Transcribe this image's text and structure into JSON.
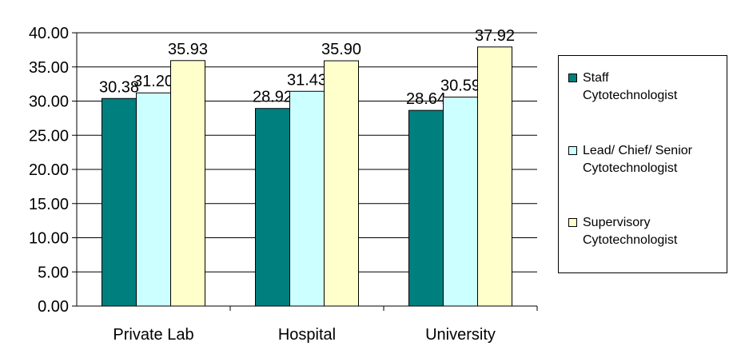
{
  "chart_data": {
    "type": "bar",
    "categories": [
      "Private Lab",
      "Hospital",
      "University"
    ],
    "series": [
      {
        "name": "Staff\nCytotechnologist",
        "values": [
          30.38,
          28.92,
          28.64
        ],
        "color": "#007F7F"
      },
      {
        "name": "Lead/ Chief/ Senior\nCytotechnologist",
        "values": [
          31.2,
          31.43,
          30.59
        ],
        "color": "#CCFFFF"
      },
      {
        "name": "Supervisory\nCytotechnologist",
        "values": [
          35.93,
          35.9,
          37.92
        ],
        "color": "#FFFFCC"
      }
    ],
    "data_labels": [
      [
        "30.38",
        "31.20",
        "35.93"
      ],
      [
        "28.92",
        "31.43",
        "35.90"
      ],
      [
        "28.64",
        "30.59",
        "37.92"
      ]
    ],
    "y_ticks": [
      "0.00",
      "5.00",
      "10.00",
      "15.00",
      "20.00",
      "25.00",
      "30.00",
      "35.00",
      "40.00"
    ],
    "ylim": [
      0,
      40
    ],
    "grid": true,
    "legend_position": "right"
  }
}
